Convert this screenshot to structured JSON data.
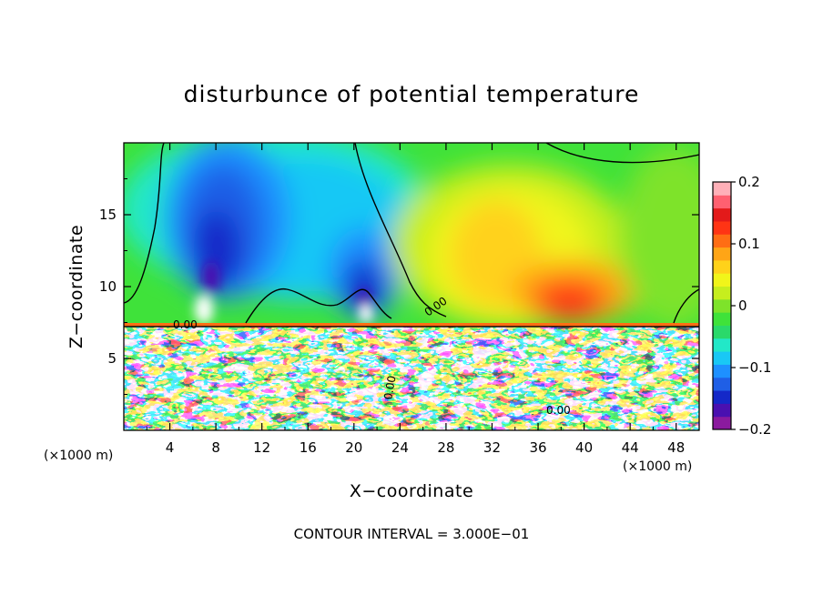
{
  "chart_data": {
    "type": "heatmap",
    "title": "disturbunce of potential temperature",
    "xlabel": "X−coordinate",
    "ylabel": "Z−coordinate",
    "x_unit_label": "(×1000 m)",
    "x_unit_label_right": "(×1000 m)",
    "xlim": [
      0,
      50
    ],
    "ylim": [
      0,
      20
    ],
    "x_ticks": [
      "4",
      "8",
      "12",
      "16",
      "20",
      "24",
      "28",
      "32",
      "36",
      "40",
      "44",
      "48"
    ],
    "y_ticks": [
      "5",
      "10",
      "15"
    ],
    "x_tick_values": [
      4,
      8,
      12,
      16,
      20,
      24,
      28,
      32,
      36,
      40,
      44,
      48
    ],
    "y_tick_values": [
      5,
      10,
      15
    ],
    "colorbar": {
      "range": [
        -0.2,
        0.2
      ],
      "ticks": [
        "0.2",
        "0.1",
        "0",
        "−0.1",
        "−0.2"
      ],
      "tick_values": [
        0.2,
        0.1,
        0,
        -0.1,
        -0.2
      ],
      "colors": [
        "#8b1a9e",
        "#4a10b0",
        "#1428c8",
        "#1f5fe6",
        "#1e90ff",
        "#19c8f5",
        "#22e8c8",
        "#2ad96a",
        "#3fe23a",
        "#7ee32a",
        "#c6ee1e",
        "#f1f51a",
        "#ffd21a",
        "#ffa516",
        "#ff6d14",
        "#ff3414",
        "#e31a1a",
        "#ff6070",
        "#ffb0b8"
      ]
    },
    "contour_labels": [
      "0.00",
      "0.00",
      "0.00",
      "0.00"
    ],
    "contour_interval_text": "CONTOUR INTERVAL = 3.000E−01",
    "structures": [
      {
        "kind": "cold_anomaly",
        "x": 8.5,
        "z": 14,
        "value": -0.18
      },
      {
        "kind": "cold_anomaly",
        "x": 21,
        "z": 11,
        "value": -0.15
      },
      {
        "kind": "warm_anomaly",
        "x": 31,
        "z": 11,
        "value": 0.09
      },
      {
        "kind": "warm_anomaly",
        "x": 39.5,
        "z": 10,
        "value": 0.14
      },
      {
        "kind": "boundary_layer_top",
        "z": 7.3
      }
    ]
  }
}
